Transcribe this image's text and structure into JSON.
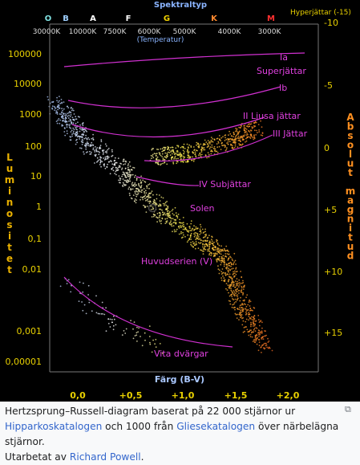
{
  "header": {
    "title": "Spektraltyp",
    "subtitle": "(Temperatur)",
    "hyper": "Hyperjättar (-15)"
  },
  "spectral": [
    "O",
    "B",
    "A",
    "F",
    "G",
    "K",
    "M"
  ],
  "temperatures": [
    "30000K",
    "10000K",
    "7500K",
    "6000K",
    "5000K",
    "4000K",
    "3000K"
  ],
  "luminosity": {
    "title": "Luminositet",
    "ticks": [
      "100000",
      "10000",
      "1000",
      "100",
      "10",
      "1",
      "0,1",
      "0,01",
      "0,001",
      "0,00001"
    ]
  },
  "magnitude": {
    "title": "Absolut magnitud",
    "ticks": [
      "-10",
      "-5",
      "0",
      "+5",
      "+10",
      "+15"
    ]
  },
  "color_axis": {
    "title": "Färg (B-V)",
    "ticks": [
      "0,0",
      "+0,5",
      "+1,0",
      "+1,5",
      "+2,0"
    ]
  },
  "regions": [
    "Ia",
    "Superjättar",
    "Ib",
    "II Ljusa jättar",
    "III Jättar",
    "IV Subjättar",
    "Solen",
    "Huvudserien (V)",
    "Vita dvärgar"
  ],
  "caption": {
    "line1": "Hertzsprung–Russell-diagram baserat på 22 000 stjärnor ur",
    "link1": "Hipparkoskatalogen",
    "mid": "och 1000 från",
    "link2": "Gliesekatalogen",
    "end": "över närbelägna stjärnor.",
    "line3": "Utarbetat av",
    "link3": "Richard Powell",
    "dot": "."
  }
}
